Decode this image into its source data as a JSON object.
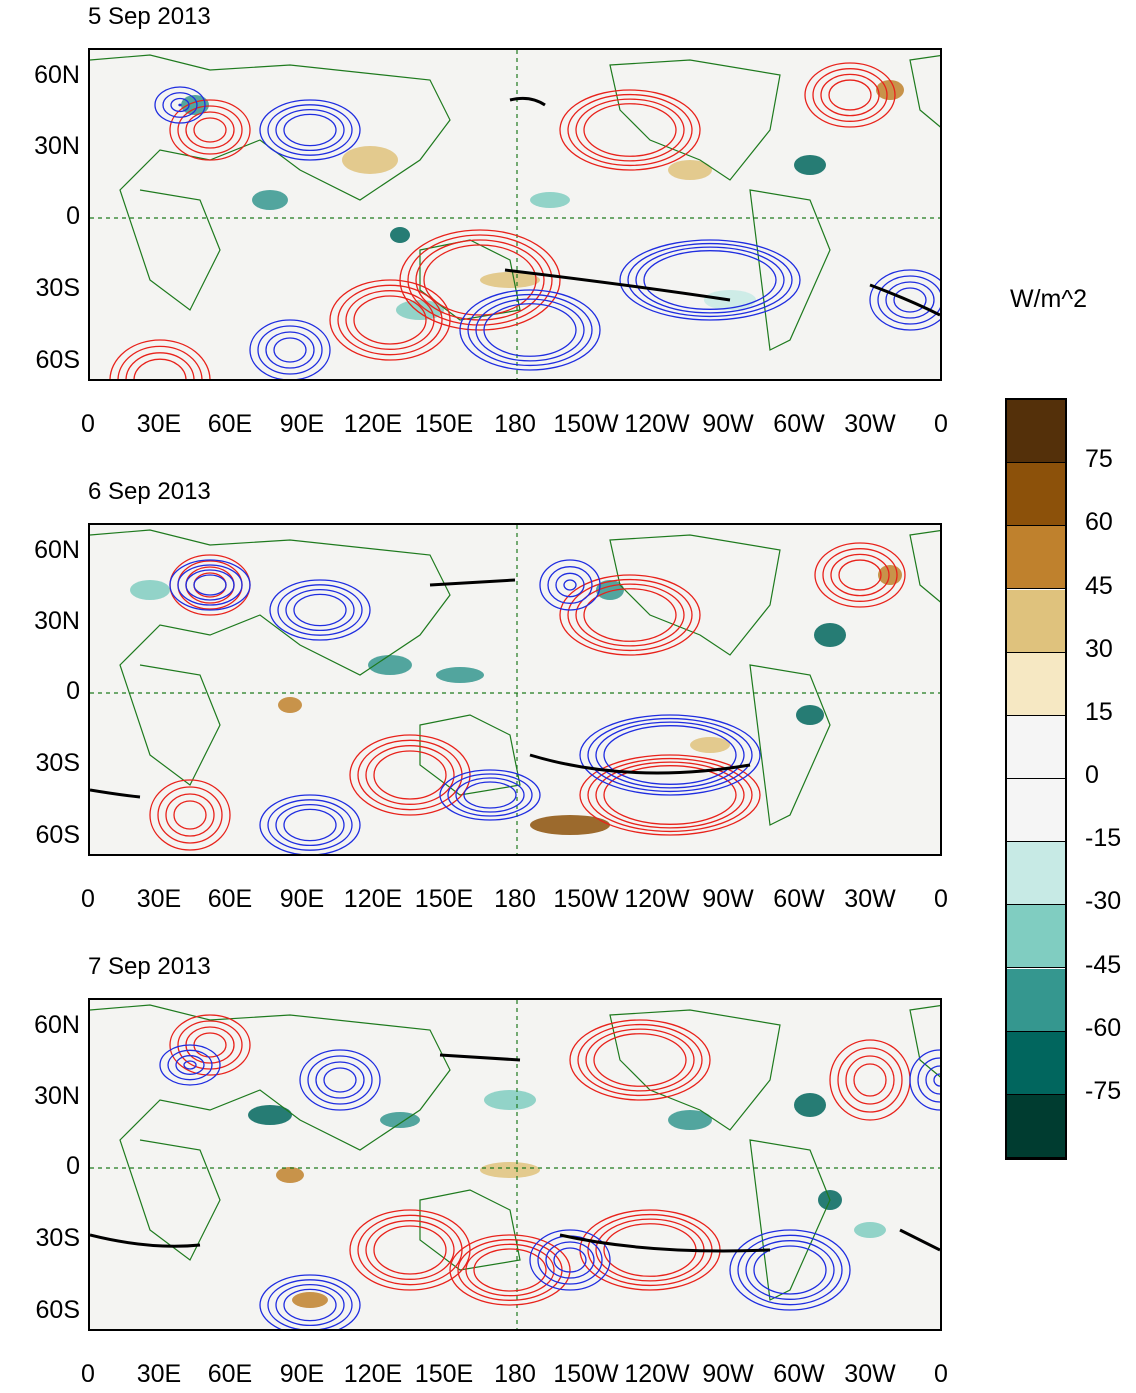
{
  "panels": [
    {
      "title": "5 Sep 2013"
    },
    {
      "title": "6 Sep 2013"
    },
    {
      "title": "7 Sep 2013"
    }
  ],
  "lat_labels": [
    "60N",
    "30N",
    "0",
    "30S",
    "60S"
  ],
  "lon_labels": [
    "0",
    "30E",
    "60E",
    "90E",
    "120E",
    "150E",
    "180",
    "150W",
    "120W",
    "90W",
    "60W",
    "30W",
    "0"
  ],
  "colorbar": {
    "units": "W/m^2",
    "labels": [
      "75",
      "60",
      "45",
      "30",
      "15",
      "0",
      "-15",
      "-30",
      "-45",
      "-60",
      "-75"
    ],
    "colors": [
      "#54300a",
      "#8c510a",
      "#bf812d",
      "#dfc27d",
      "#f6e8c3",
      "#f5f5f5",
      "#f5f5f5",
      "#c7eae5",
      "#80cdc1",
      "#35978f",
      "#01665e",
      "#003c30"
    ]
  },
  "colors": {
    "positive_contour": "#e8221b",
    "negative_contour": "#1f2de0",
    "zero_contour": "#000000",
    "coastline": "#1e7a1e",
    "reference_line": "#1e7a1e"
  }
}
